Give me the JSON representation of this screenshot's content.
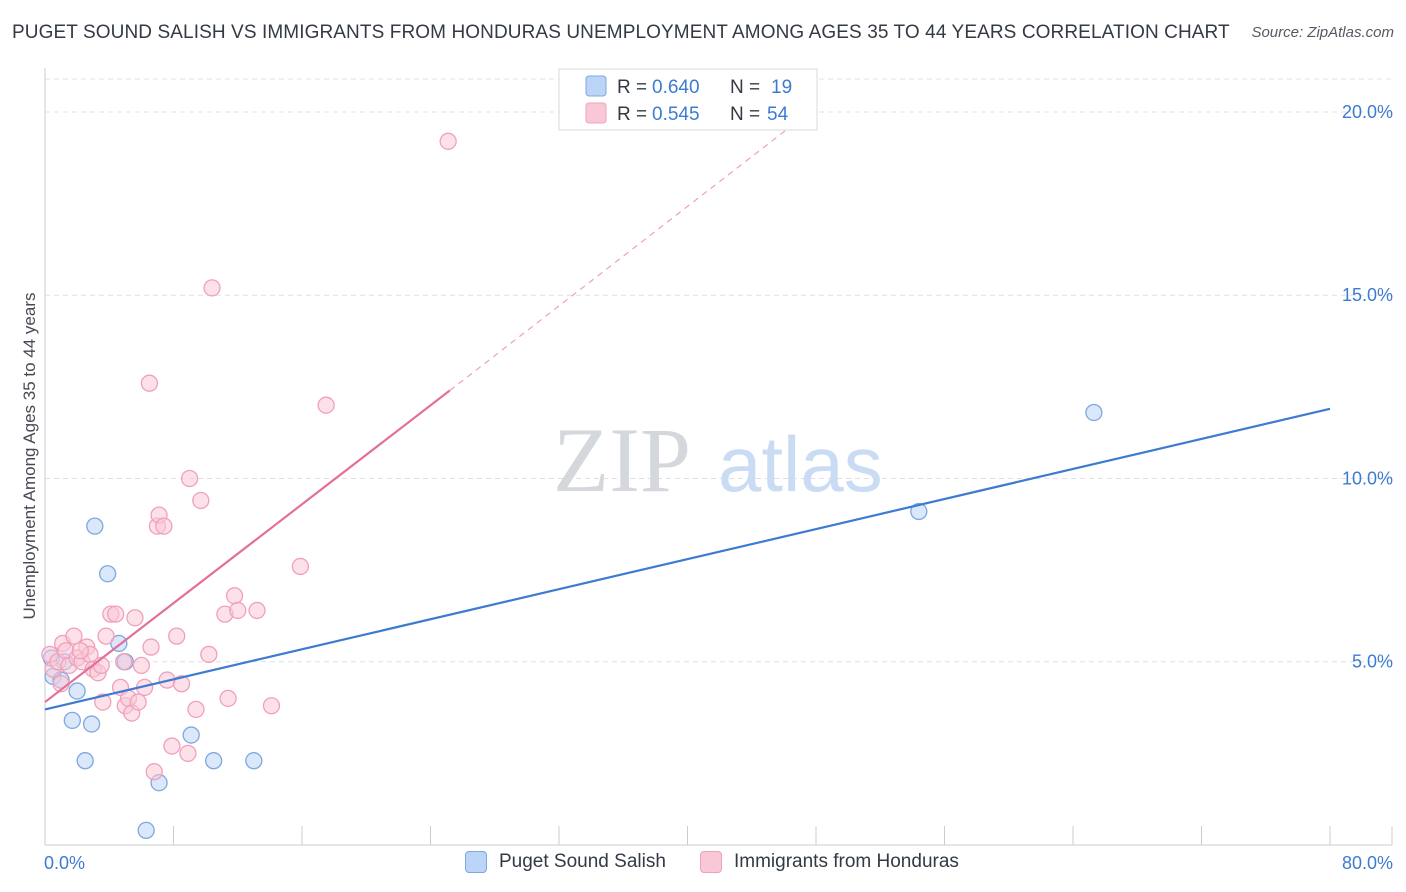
{
  "colors": {
    "blue": "#3d7bd0",
    "blue_fill": "#bcd5f6",
    "blue_stroke": "#7ea8e0",
    "pink": "#e4709a",
    "pink_fill": "#f9c8d7",
    "pink_stroke": "#f0a0bb",
    "grid": "#dde0e5",
    "axis_text": "#3d7bd0"
  },
  "watermark": {
    "zip": "ZIP",
    "atlas": "atlas"
  },
  "chart_data": {
    "type": "scatter",
    "title": "PUGET SOUND SALISH VS IMMIGRANTS FROM HONDURAS UNEMPLOYMENT AMONG AGES 35 TO 44 YEARS CORRELATION CHART",
    "source": "Source: ZipAtlas.com",
    "xlabel": "",
    "ylabel": "Unemployment Among Ages 35 to 44 years",
    "xlim": [
      0,
      80
    ],
    "ylim": [
      0,
      20.9
    ],
    "x_tick_labels": [
      {
        "value": 0,
        "label": "0.0%"
      },
      {
        "value": 80,
        "label": "80.0%"
      }
    ],
    "y_tick_labels": [
      {
        "value": 5,
        "label": "5.0%"
      },
      {
        "value": 10,
        "label": "10.0%"
      },
      {
        "value": 15,
        "label": "15.0%"
      },
      {
        "value": 20,
        "label": "20.0%"
      }
    ],
    "x_minor_ticks": [
      8,
      16,
      24,
      32,
      40,
      48,
      56,
      64,
      72,
      80
    ],
    "legend": {
      "rows": [
        {
          "r_label": "R =",
          "r_value": "0.640",
          "n_label": "N =",
          "n_value": "19"
        },
        {
          "r_label": "R =",
          "r_value": "0.545",
          "n_label": "N =",
          "n_value": "54"
        }
      ]
    },
    "series": [
      {
        "name": "Puget Sound Salish",
        "color_key": "blue",
        "points": [
          [
            0.5,
            4.6
          ],
          [
            0.4,
            5.1
          ],
          [
            1.2,
            5.0
          ],
          [
            2.0,
            4.2
          ],
          [
            1.7,
            3.4
          ],
          [
            2.9,
            3.3
          ],
          [
            2.5,
            2.3
          ],
          [
            3.1,
            8.7
          ],
          [
            3.9,
            7.4
          ],
          [
            4.6,
            5.5
          ],
          [
            5.0,
            5.0
          ],
          [
            9.1,
            3.0
          ],
          [
            10.5,
            2.3
          ],
          [
            13.0,
            2.3
          ],
          [
            7.1,
            1.7
          ],
          [
            6.3,
            0.4
          ],
          [
            1.0,
            4.5
          ],
          [
            54.4,
            9.1
          ],
          [
            65.3,
            11.8
          ]
        ],
        "trend": {
          "x0": 0,
          "y0": 3.7,
          "x1": 80,
          "y1": 11.9,
          "dashed_to": null
        }
      },
      {
        "name": "Immigrants from Honduras",
        "color_key": "pink",
        "points": [
          [
            0.3,
            5.2
          ],
          [
            0.5,
            4.8
          ],
          [
            0.8,
            5.0
          ],
          [
            1.1,
            5.5
          ],
          [
            1.3,
            5.3
          ],
          [
            1.5,
            4.9
          ],
          [
            1.8,
            5.7
          ],
          [
            2.0,
            5.1
          ],
          [
            2.3,
            5.0
          ],
          [
            2.6,
            5.4
          ],
          [
            2.8,
            5.2
          ],
          [
            3.0,
            4.8
          ],
          [
            3.3,
            4.7
          ],
          [
            3.6,
            3.9
          ],
          [
            3.8,
            5.7
          ],
          [
            4.1,
            6.3
          ],
          [
            4.4,
            6.3
          ],
          [
            4.7,
            4.3
          ],
          [
            5.0,
            3.8
          ],
          [
            5.2,
            4.0
          ],
          [
            5.4,
            3.6
          ],
          [
            5.6,
            6.2
          ],
          [
            5.8,
            3.9
          ],
          [
            6.0,
            4.9
          ],
          [
            6.2,
            4.3
          ],
          [
            6.5,
            12.6
          ],
          [
            6.6,
            5.4
          ],
          [
            6.8,
            2.0
          ],
          [
            7.0,
            8.7
          ],
          [
            7.1,
            9.0
          ],
          [
            7.4,
            8.7
          ],
          [
            7.6,
            4.5
          ],
          [
            7.9,
            2.7
          ],
          [
            8.2,
            5.7
          ],
          [
            8.5,
            4.4
          ],
          [
            8.9,
            2.5
          ],
          [
            9.0,
            10.0
          ],
          [
            9.4,
            3.7
          ],
          [
            9.7,
            9.4
          ],
          [
            10.2,
            5.2
          ],
          [
            10.4,
            15.2
          ],
          [
            11.2,
            6.3
          ],
          [
            11.4,
            4.0
          ],
          [
            11.8,
            6.8
          ],
          [
            12.0,
            6.4
          ],
          [
            13.2,
            6.4
          ],
          [
            14.1,
            3.8
          ],
          [
            15.9,
            7.6
          ],
          [
            17.5,
            12.0
          ],
          [
            25.1,
            19.2
          ],
          [
            1.0,
            4.4
          ],
          [
            2.2,
            5.3
          ],
          [
            3.5,
            4.9
          ],
          [
            4.9,
            5.0
          ]
        ],
        "trend": {
          "x0": 0,
          "y0": 3.9,
          "x1": 25.2,
          "y1": 12.4,
          "dashed_to": {
            "x": 80,
            "y": 31.0
          }
        }
      }
    ]
  }
}
